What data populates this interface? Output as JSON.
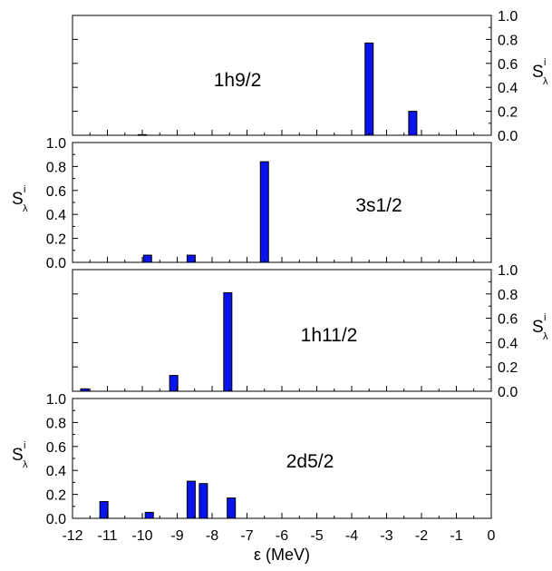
{
  "chart_data": [
    {
      "type": "bar",
      "panel_label": "1h9/2",
      "ylabel": "S",
      "ylabel_superscript": "i",
      "ylabel_subscript": "λ",
      "ylabel_side": "right",
      "ylim": [
        0,
        1.0
      ],
      "yticks": [
        "0.0",
        "0.2",
        "0.4",
        "0.6",
        "0.8",
        "1.0"
      ],
      "xlim": [
        -12,
        0
      ],
      "x": [
        -10.0,
        -3.5,
        -2.25
      ],
      "values": [
        0.005,
        0.77,
        0.2
      ]
    },
    {
      "type": "bar",
      "panel_label": "3s1/2",
      "ylabel": "S",
      "ylabel_superscript": "i",
      "ylabel_subscript": "λ",
      "ylabel_side": "left",
      "ylim": [
        0,
        1.0
      ],
      "yticks": [
        "0.0",
        "0.2",
        "0.4",
        "0.6",
        "0.8",
        "1.0"
      ],
      "xlim": [
        -12,
        0
      ],
      "x": [
        -9.85,
        -8.6,
        -6.5
      ],
      "values": [
        0.06,
        0.06,
        0.84
      ]
    },
    {
      "type": "bar",
      "panel_label": "1h11/2",
      "ylabel": "S",
      "ylabel_superscript": "i",
      "ylabel_subscript": "λ",
      "ylabel_side": "right",
      "ylim": [
        0,
        1.0
      ],
      "yticks": [
        "0.0",
        "0.2",
        "0.4",
        "0.6",
        "0.8",
        "1.0"
      ],
      "xlim": [
        -12,
        0
      ],
      "x": [
        -11.65,
        -9.1,
        -7.55
      ],
      "values": [
        0.02,
        0.13,
        0.81
      ]
    },
    {
      "type": "bar",
      "panel_label": "2d5/2",
      "ylabel": "S",
      "ylabel_superscript": "i",
      "ylabel_subscript": "λ",
      "ylabel_side": "left",
      "ylim": [
        0,
        1.0
      ],
      "yticks": [
        "0.0",
        "0.2",
        "0.4",
        "0.6",
        "0.8",
        "1.0"
      ],
      "xlim": [
        -12,
        0
      ],
      "x": [
        -11.1,
        -9.8,
        -8.6,
        -8.25,
        -7.45
      ],
      "values": [
        0.14,
        0.05,
        0.31,
        0.29,
        0.17
      ],
      "xticks": [
        "-12",
        "-11",
        "-10",
        "-9",
        "-8",
        "-7",
        "-6",
        "-5",
        "-4",
        "-3",
        "-2",
        "-1",
        "0"
      ],
      "xlabel": "ε (MeV)"
    }
  ]
}
